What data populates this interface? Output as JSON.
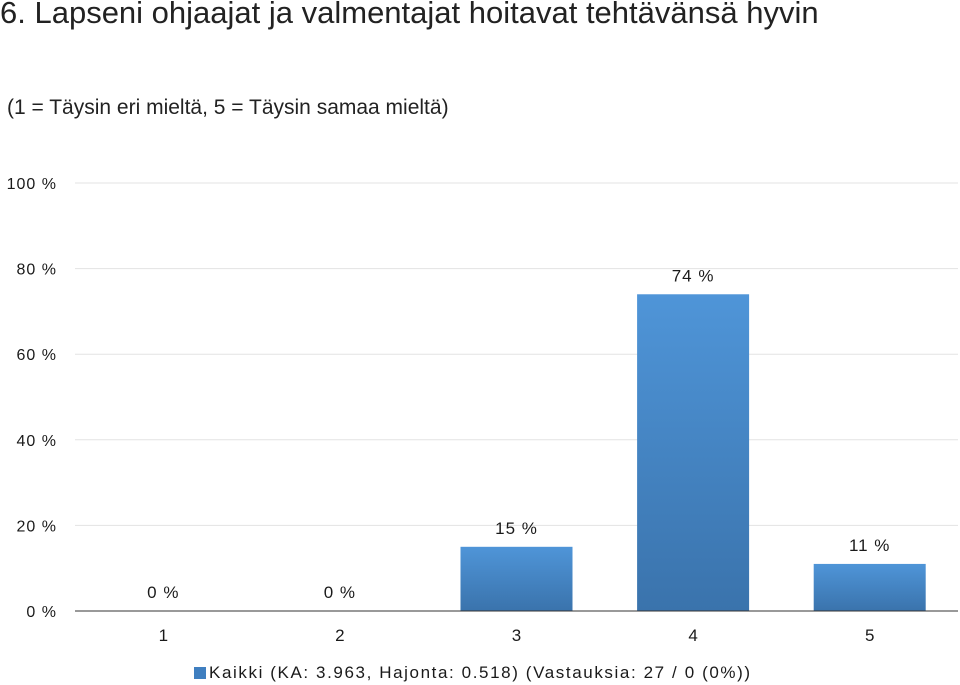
{
  "header": {
    "title": "6. Lapseni ohjaajat ja valmentajat hoitavat tehtävänsä hyvin",
    "subtitle": "(1 = Täysin eri mieltä, 5 = Täysin samaa mieltä)"
  },
  "chart_data": {
    "type": "bar",
    "categories": [
      "1",
      "2",
      "3",
      "4",
      "5"
    ],
    "series": [
      {
        "name": "Kaikki (KA: 3.963, Hajonta: 0.518) (Vastauksia: 27 / 0 (0%))",
        "values": [
          0,
          0,
          15,
          74,
          11
        ],
        "labels": [
          "0 %",
          "0 %",
          "15 %",
          "74 %",
          "11 %"
        ]
      }
    ],
    "yticks": [
      "0 %",
      "20 %",
      "40 %",
      "60 %",
      "80 %",
      "100 %"
    ],
    "ylim": [
      0,
      100
    ],
    "grid": true,
    "legend_position": "bottom",
    "colors": {
      "bar_top": "#4f95d8",
      "bar_bottom": "#3a73ac",
      "grid": "#e3e3e3",
      "axis": "#333333"
    }
  }
}
